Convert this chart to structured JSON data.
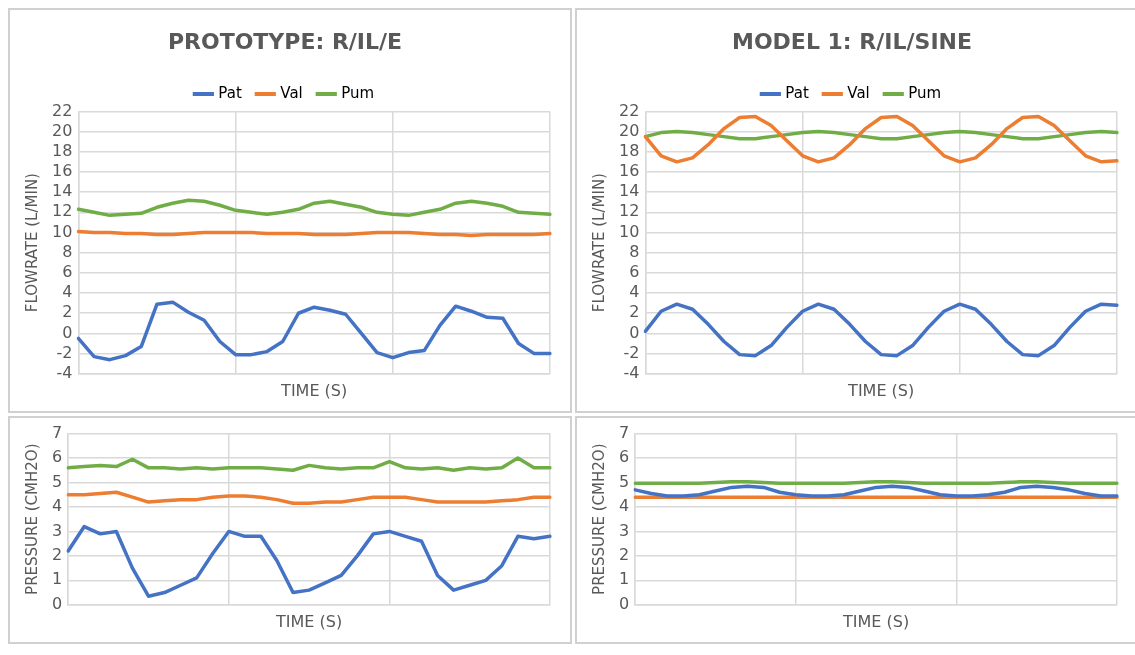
{
  "chart_data": [
    {
      "type": "line",
      "title": "PROTOTYPE: R/IL/E",
      "xlabel": "TIME (S)",
      "ylabel": "FLOWRATE (L/MIN)",
      "categories": [
        null,
        null,
        null,
        null,
        null,
        null,
        null,
        null,
        null,
        null,
        null,
        null,
        null,
        null,
        null,
        null,
        null,
        null,
        null,
        null,
        null,
        null,
        null,
        null,
        null,
        null,
        null,
        null,
        null,
        null,
        null
      ],
      "ylim": [
        -4,
        22
      ],
      "yticks": [
        -4,
        -2,
        0,
        2,
        4,
        6,
        8,
        10,
        12,
        14,
        16,
        18,
        20,
        22
      ],
      "tick_labels": "y",
      "grid": true,
      "legend": "top",
      "marker": "none",
      "line_style": "solid",
      "series": [
        {
          "name": "Pat",
          "color": "#4472c4",
          "values": [
            -0.5,
            -2.3,
            -2.6,
            -2.2,
            -1.3,
            2.9,
            3.1,
            2.1,
            1.3,
            -0.8,
            -2.1,
            -2.1,
            -1.8,
            -0.8,
            2.0,
            2.6,
            2.3,
            1.9,
            0,
            -1.9,
            -2.4,
            -1.9,
            -1.7,
            0.8,
            2.7,
            2.2,
            1.6,
            1.5,
            -1.0,
            -2.0,
            -2.0
          ]
        },
        {
          "name": "Val",
          "color": "#ed7d31",
          "values": [
            10.1,
            10.0,
            10.0,
            9.9,
            9.9,
            9.8,
            9.8,
            9.9,
            10.0,
            10.0,
            10.0,
            10.0,
            9.9,
            9.9,
            9.9,
            9.8,
            9.8,
            9.8,
            9.9,
            10.0,
            10.0,
            10.0,
            9.9,
            9.8,
            9.8,
            9.7,
            9.8,
            9.8,
            9.8,
            9.8,
            9.9
          ]
        },
        {
          "name": "Pum",
          "color": "#70ad47",
          "values": [
            12.3,
            12.0,
            11.7,
            11.8,
            11.9,
            12.5,
            12.9,
            13.2,
            13.1,
            12.7,
            12.2,
            12.0,
            11.8,
            12.0,
            12.3,
            12.9,
            13.1,
            12.8,
            12.5,
            12.0,
            11.8,
            11.7,
            12.0,
            12.3,
            12.9,
            13.1,
            12.9,
            12.6,
            12.0,
            11.9,
            11.8
          ]
        }
      ]
    },
    {
      "type": "line",
      "title": "MODEL 1: R/IL/SINE",
      "xlabel": "TIME (S)",
      "ylabel": "FLOWRATE (L/MIN)",
      "categories": [
        null,
        null,
        null,
        null,
        null,
        null,
        null,
        null,
        null,
        null,
        null,
        null,
        null,
        null,
        null,
        null,
        null,
        null,
        null,
        null,
        null,
        null,
        null,
        null,
        null,
        null,
        null,
        null,
        null,
        null,
        null
      ],
      "ylim": [
        -4,
        22
      ],
      "yticks": [
        -4,
        -2,
        0,
        2,
        4,
        6,
        8,
        10,
        12,
        14,
        16,
        18,
        20,
        22
      ],
      "tick_labels": "y",
      "grid": true,
      "legend": "top",
      "marker": "none",
      "line_style": "solid",
      "series": [
        {
          "name": "Pat",
          "color": "#4472c4",
          "values": [
            0.2,
            2.2,
            2.9,
            2.4,
            0.9,
            -0.8,
            -2.1,
            -2.2,
            -1.2,
            0.6,
            2.2,
            2.9,
            2.4,
            0.9,
            -0.8,
            -2.1,
            -2.2,
            -1.2,
            0.6,
            2.2,
            2.9,
            2.4,
            0.9,
            -0.8,
            -2.1,
            -2.2,
            -1.2,
            0.6,
            2.2,
            2.9,
            2.8
          ]
        },
        {
          "name": "Val",
          "color": "#ed7d31",
          "values": [
            19.5,
            17.6,
            17.0,
            17.4,
            18.7,
            20.3,
            21.4,
            21.5,
            20.6,
            19.1,
            17.6,
            17.0,
            17.4,
            18.7,
            20.3,
            21.4,
            21.5,
            20.6,
            19.1,
            17.6,
            17.0,
            17.4,
            18.7,
            20.3,
            21.4,
            21.5,
            20.6,
            19.1,
            17.6,
            17.0,
            17.1
          ]
        },
        {
          "name": "Pum",
          "color": "#70ad47",
          "values": [
            19.5,
            19.9,
            20.0,
            19.9,
            19.7,
            19.5,
            19.3,
            19.3,
            19.5,
            19.7,
            19.9,
            20.0,
            19.9,
            19.7,
            19.5,
            19.3,
            19.3,
            19.5,
            19.7,
            19.9,
            20.0,
            19.9,
            19.7,
            19.5,
            19.3,
            19.3,
            19.5,
            19.7,
            19.9,
            20.0,
            19.9
          ]
        }
      ]
    },
    {
      "type": "line",
      "xlabel": "TIME (S)",
      "ylabel": "PRESSURE (CMH2O)",
      "categories": [
        null,
        null,
        null,
        null,
        null,
        null,
        null,
        null,
        null,
        null,
        null,
        null,
        null,
        null,
        null,
        null,
        null,
        null,
        null,
        null,
        null,
        null,
        null,
        null,
        null,
        null,
        null,
        null,
        null,
        null,
        null
      ],
      "ylim": [
        0,
        7
      ],
      "yticks": [
        0,
        1,
        2,
        3,
        4,
        5,
        6,
        7
      ],
      "tick_labels": "y",
      "grid": true,
      "marker": "none",
      "line_style": "solid",
      "series": [
        {
          "color": "#4472c4",
          "values": [
            2.2,
            3.2,
            2.9,
            3.0,
            1.5,
            0.35,
            0.5,
            0.8,
            1.1,
            2.1,
            3.0,
            2.8,
            2.8,
            1.8,
            0.5,
            0.6,
            0.9,
            1.2,
            2.0,
            2.9,
            3.0,
            2.8,
            2.6,
            1.2,
            0.6,
            0.8,
            1.0,
            1.6,
            2.8,
            2.7,
            2.8
          ]
        },
        {
          "color": "#ed7d31",
          "values": [
            4.5,
            4.5,
            4.55,
            4.6,
            4.4,
            4.2,
            4.25,
            4.3,
            4.3,
            4.4,
            4.45,
            4.45,
            4.4,
            4.3,
            4.15,
            4.15,
            4.2,
            4.2,
            4.3,
            4.4,
            4.4,
            4.4,
            4.3,
            4.2,
            4.2,
            4.2,
            4.2,
            4.25,
            4.3,
            4.4,
            4.4
          ]
        },
        {
          "color": "#70ad47",
          "values": [
            5.6,
            5.65,
            5.7,
            5.65,
            5.95,
            5.6,
            5.6,
            5.55,
            5.6,
            5.55,
            5.6,
            5.6,
            5.6,
            5.55,
            5.5,
            5.7,
            5.6,
            5.55,
            5.6,
            5.6,
            5.85,
            5.6,
            5.55,
            5.6,
            5.5,
            5.6,
            5.55,
            5.6,
            6.0,
            5.6,
            5.6
          ]
        }
      ]
    },
    {
      "type": "line",
      "xlabel": "TIME (S)",
      "ylabel": "PRESSURE (CMH2O)",
      "categories": [
        null,
        null,
        null,
        null,
        null,
        null,
        null,
        null,
        null,
        null,
        null,
        null,
        null,
        null,
        null,
        null,
        null,
        null,
        null,
        null,
        null,
        null,
        null,
        null,
        null,
        null,
        null,
        null,
        null,
        null,
        null
      ],
      "ylim": [
        0,
        7
      ],
      "yticks": [
        0,
        1,
        2,
        3,
        4,
        5,
        6,
        7
      ],
      "tick_labels": "y",
      "grid": true,
      "marker": "none",
      "line_style": "solid",
      "series": [
        {
          "color": "#4472c4",
          "values": [
            4.7,
            4.55,
            4.45,
            4.45,
            4.5,
            4.65,
            4.8,
            4.85,
            4.8,
            4.6,
            4.5,
            4.45,
            4.45,
            4.5,
            4.65,
            4.8,
            4.85,
            4.8,
            4.65,
            4.5,
            4.45,
            4.45,
            4.5,
            4.6,
            4.8,
            4.85,
            4.8,
            4.7,
            4.55,
            4.45,
            4.45
          ]
        },
        {
          "color": "#ed7d31",
          "values": [
            4.4,
            4.4,
            4.4,
            4.4,
            4.4,
            4.4,
            4.4,
            4.4,
            4.4,
            4.4,
            4.4,
            4.4,
            4.4,
            4.4,
            4.4,
            4.4,
            4.4,
            4.4,
            4.4,
            4.4,
            4.4,
            4.4,
            4.4,
            4.4,
            4.4,
            4.4,
            4.4,
            4.4,
            4.4,
            4.4,
            4.4
          ]
        },
        {
          "color": "#70ad47",
          "values": [
            4.97,
            4.97,
            4.97,
            4.97,
            4.97,
            5.0,
            5.03,
            5.03,
            5.0,
            4.97,
            4.97,
            4.97,
            4.97,
            4.97,
            5.0,
            5.03,
            5.03,
            5.0,
            4.97,
            4.97,
            4.97,
            4.97,
            4.97,
            5.0,
            5.03,
            5.03,
            5.0,
            4.97,
            4.97,
            4.97,
            4.97
          ]
        }
      ]
    }
  ]
}
